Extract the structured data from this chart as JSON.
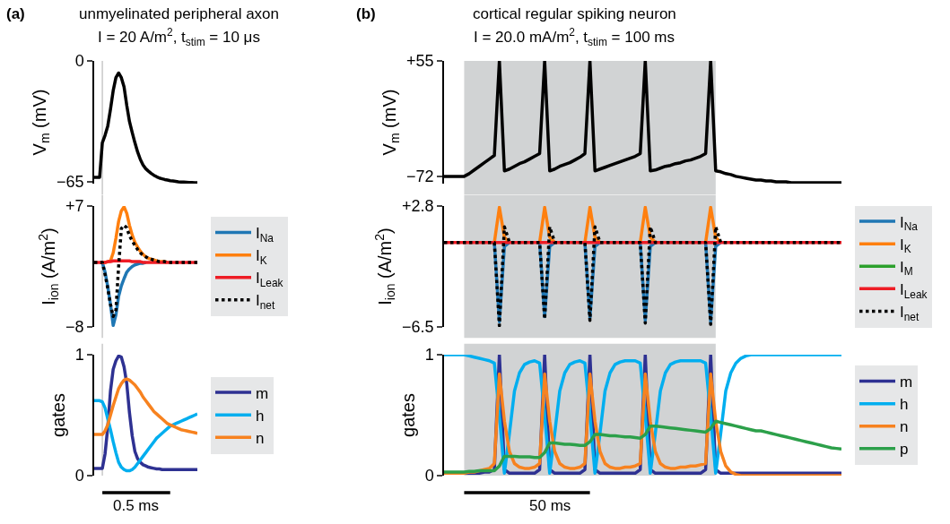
{
  "chart_data": [
    {
      "type": "line",
      "title": "unmyelinated peripheral axon",
      "subtitle": "I = 20 A/m$^{2}$, t$_{stim}$ = 10 μs",
      "annotations": [
        "(a)"
      ],
      "ylabel": "V$_{m}$ (mV)",
      "ylim": [
        -66,
        0
      ],
      "yticks": [
        0,
        {
          "value": -65,
          "label": "−65"
        }
      ],
      "tick_labels": "y",
      "categories": [
        null,
        null,
        null,
        null,
        null,
        null,
        null,
        null,
        null,
        null,
        null,
        null,
        null,
        null,
        null,
        null,
        null,
        null,
        null,
        null,
        null,
        null,
        null,
        null,
        null,
        null,
        null,
        null,
        null,
        null,
        null,
        null,
        null,
        null,
        null,
        null,
        null,
        null,
        null
      ],
      "series": [
        {
          "color": "#000000",
          "values": [
            -62.6,
            -62.6,
            -62.6,
            -44,
            -40,
            -35,
            -26,
            -16,
            -9,
            -6.5,
            -9,
            -14,
            -24,
            -32.6,
            -38.5,
            -44,
            -49,
            -53,
            -56,
            -58,
            -59.3,
            -60.5,
            -61.5,
            -62.3,
            -63,
            -63.4,
            -63.8,
            -64.1,
            -64.4,
            -64.6,
            -64.8,
            -65,
            -65.1,
            -65.2,
            -65.3,
            -65.4,
            -65.4,
            -65.5,
            -65.5
          ]
        }
      ]
    },
    {
      "type": "line",
      "ylabel": "I$_{ion}$ (A/m$^{2}$)",
      "ylim": [
        -8,
        7
      ],
      "yticks": [
        {
          "value": 7,
          "label": "+7"
        },
        {
          "value": -8,
          "label": "−8"
        }
      ],
      "tick_labels": "y",
      "legend": "right",
      "categories": [
        null,
        null,
        null,
        null,
        null,
        null,
        null,
        null,
        null,
        null,
        null,
        null,
        null,
        null,
        null,
        null,
        null,
        null,
        null,
        null,
        null,
        null,
        null,
        null,
        null,
        null,
        null,
        null,
        null,
        null,
        null,
        null,
        null,
        null,
        null,
        null,
        null,
        null,
        null
      ],
      "series": [
        {
          "name": "I$_{Na}$",
          "color": "#1f77b4",
          "values": [
            null,
            null,
            0,
            0,
            -1.2,
            -3,
            -5.2,
            -7.8,
            -6.5,
            -4.2,
            -2.9,
            -2,
            -1.2,
            -0.8,
            -0.5,
            -0.3,
            -0.2,
            -0.1,
            -0.1,
            0,
            null,
            null,
            null,
            null,
            null,
            null,
            null,
            null,
            null,
            null,
            null,
            null,
            null,
            null,
            null,
            null,
            null,
            null,
            null
          ]
        },
        {
          "name": "I$_{K}$",
          "color": "#ff7f0e",
          "values": [
            null,
            null,
            null,
            0,
            0,
            0.1,
            0.2,
            1.2,
            3,
            5.1,
            6.4,
            6.9,
            6.1,
            4.6,
            3.4,
            2.5,
            1.9,
            1.4,
            1.0,
            0.7,
            0.5,
            0.4,
            0.3,
            0.2,
            0.1,
            0.1,
            0.1,
            0,
            null,
            null,
            null,
            null,
            null,
            null,
            null,
            null,
            null,
            null,
            null
          ]
        },
        {
          "name": "I$_{Leak}$",
          "color": "#ee1c25",
          "values": [
            0,
            0,
            0,
            0,
            0,
            0.1,
            0.1,
            0.2,
            0.2,
            0.2,
            0.2,
            0.2,
            0.2,
            0.2,
            0.1,
            0.1,
            0.1,
            0.1,
            0,
            0,
            0,
            0,
            0,
            0,
            0,
            0,
            0,
            0,
            0,
            0,
            0,
            0,
            0,
            0,
            0,
            0,
            0,
            0,
            0
          ]
        },
        {
          "name": "I$_{net}$",
          "color": "#000000",
          "line_style": "dotted",
          "values": [
            0,
            0,
            0,
            0,
            -1.5,
            -3.2,
            -5.2,
            -6.7,
            -5.9,
            -0.5,
            4.2,
            4.6,
            4.3,
            3.3,
            2.7,
            2.1,
            1.6,
            1.2,
            0.9,
            0.7,
            0.5,
            0.4,
            0.3,
            0.2,
            0.1,
            0.1,
            0.1,
            0,
            0,
            0,
            0,
            0,
            0,
            0,
            0,
            0,
            0,
            0,
            0
          ]
        }
      ]
    },
    {
      "type": "line",
      "ylabel": "gates",
      "ylim": [
        0,
        1
      ],
      "yticks": [
        0,
        1
      ],
      "tick_labels": "y",
      "legend": "right",
      "annotations": [
        "0.5 ms"
      ],
      "categories": [
        null,
        null,
        null,
        null,
        null,
        null,
        null,
        null,
        null,
        null,
        null,
        null,
        null,
        null,
        null,
        null,
        null,
        null,
        null,
        null,
        null,
        null,
        null,
        null,
        null,
        null,
        null,
        null,
        null,
        null,
        null,
        null,
        null,
        null,
        null,
        null,
        null,
        null,
        null
      ],
      "series": [
        {
          "name": "m",
          "color": "#2e3192",
          "values": [
            0.06,
            0.06,
            0.06,
            0.06,
            0.18,
            0.4,
            0.7,
            0.88,
            0.95,
            0.99,
            0.98,
            0.9,
            0.76,
            0.52,
            0.33,
            0.2,
            0.14,
            0.11,
            0.09,
            0.08,
            0.07,
            0.065,
            0.06,
            0.055,
            0.055,
            0.05,
            0.05,
            0.05,
            0.05,
            0.05,
            0.05,
            0.05,
            0.05,
            0.05,
            0.05,
            0.05,
            0.05,
            0.05,
            0.05
          ]
        },
        {
          "name": "h",
          "color": "#00aeef",
          "values": [
            0.62,
            0.62,
            0.62,
            0.61,
            0.56,
            0.47,
            0.38,
            0.28,
            0.19,
            0.11,
            0.07,
            0.05,
            0.04,
            0.04,
            0.05,
            0.07,
            0.1,
            0.13,
            0.16,
            0.19,
            0.22,
            0.25,
            0.28,
            0.31,
            0.33,
            0.35,
            0.37,
            0.39,
            0.41,
            0.42,
            0.43,
            0.44,
            0.45,
            0.46,
            0.47,
            0.48,
            0.49,
            0.5,
            0.51
          ]
        },
        {
          "name": "n",
          "color": "#f7821f",
          "values": [
            0.34,
            0.34,
            0.34,
            0.34,
            0.37,
            0.42,
            0.5,
            0.58,
            0.65,
            0.72,
            0.76,
            0.79,
            0.8,
            0.79,
            0.77,
            0.75,
            0.72,
            0.69,
            0.65,
            0.62,
            0.59,
            0.56,
            0.53,
            0.51,
            0.49,
            0.47,
            0.45,
            0.43,
            0.42,
            0.41,
            0.4,
            0.39,
            0.38,
            0.375,
            0.37,
            0.365,
            0.36,
            0.355,
            0.35
          ]
        }
      ]
    },
    {
      "type": "line",
      "title": "cortical regular spiking neuron",
      "subtitle": "I = 20.0 mA/m$^{2}$, t$_{stim}$ = 100 ms",
      "annotations": [
        "(b)"
      ],
      "ylabel": "V$_{m}$ (mV)",
      "ylim": [
        -80,
        55
      ],
      "yticks": [
        {
          "value": 55,
          "label": "+55"
        },
        {
          "value": -72,
          "label": "−72"
        }
      ],
      "tick_labels": "y",
      "categories": [
        null,
        null,
        null,
        null,
        null,
        null,
        null,
        null,
        null,
        null,
        null,
        null,
        null,
        null,
        null,
        null,
        null,
        null,
        null,
        null,
        null,
        null,
        null,
        null,
        null,
        null,
        null,
        null,
        null,
        null,
        null,
        null,
        null,
        null,
        null,
        null,
        null,
        null,
        null,
        null,
        null,
        null,
        null,
        null,
        null,
        null,
        null,
        null,
        null,
        null,
        null,
        null,
        null,
        null,
        null,
        null,
        null,
        null,
        null,
        null,
        null,
        null,
        null,
        null,
        null,
        null,
        null,
        null,
        null,
        null,
        null,
        null,
        null,
        null,
        null,
        null,
        null,
        null,
        null,
        null
      ],
      "series": [
        {
          "color": "#000000",
          "values": [
            -72,
            -72,
            -72,
            -72,
            -72,
            -69,
            -65,
            -61,
            -57,
            -53,
            -49,
            55,
            -66,
            -64,
            -61,
            -58,
            -56,
            -53,
            -50,
            -47,
            55,
            -66,
            -64,
            -61,
            -59,
            -57,
            -54,
            -51,
            -47,
            55,
            -66,
            -64,
            -62,
            -60,
            -58,
            -56,
            -54,
            -52,
            -50,
            -47,
            55,
            -66,
            -65,
            -63,
            -61,
            -60,
            -58,
            -57,
            -55,
            -54,
            -52,
            -50,
            -47,
            55,
            -66,
            -67,
            -69,
            -70,
            -72,
            -73,
            -74,
            -75,
            -76,
            -76,
            -77,
            -77,
            -78,
            -78,
            -78,
            -79,
            -79,
            -79,
            -79,
            -79,
            -79,
            -79,
            -79,
            -79,
            -79,
            -79
          ]
        }
      ]
    },
    {
      "type": "line",
      "ylabel": "I$_{ion}$ (A/m$^{2}$)",
      "ylim": [
        -6.5,
        2.8
      ],
      "yticks": [
        {
          "value": 2.8,
          "label": "+2.8"
        },
        {
          "value": -6.5,
          "label": "−6.5"
        }
      ],
      "tick_labels": "y",
      "legend": "right",
      "categories": [
        null,
        null,
        null,
        null,
        null,
        null,
        null,
        null,
        null,
        null,
        null,
        null,
        null,
        null,
        null,
        null,
        null,
        null,
        null,
        null,
        null,
        null,
        null,
        null,
        null,
        null,
        null,
        null,
        null,
        null,
        null,
        null,
        null,
        null,
        null,
        null,
        null,
        null,
        null,
        null,
        null,
        null,
        null,
        null,
        null,
        null,
        null,
        null,
        null,
        null,
        null,
        null,
        null,
        null,
        null,
        null,
        null,
        null,
        null,
        null,
        null,
        null,
        null,
        null,
        null,
        null,
        null,
        null,
        null,
        null,
        null,
        null,
        null,
        null,
        null,
        null,
        null,
        null,
        null,
        null
      ],
      "series": [
        {
          "name": "I$_{Na}$",
          "color": "#1f77b4",
          "values": [
            null,
            null,
            null,
            null,
            null,
            null,
            null,
            null,
            null,
            null,
            0,
            -6.1,
            -0.3,
            0,
            null,
            null,
            null,
            null,
            null,
            0,
            -5.7,
            -0.3,
            0,
            null,
            null,
            null,
            null,
            null,
            0,
            -5.8,
            -0.3,
            0,
            null,
            null,
            null,
            null,
            null,
            null,
            null,
            0,
            -6.0,
            -0.3,
            0,
            null,
            null,
            null,
            null,
            null,
            null,
            null,
            null,
            null,
            0,
            -6.1,
            -0.3,
            0,
            null,
            null,
            null,
            null,
            null,
            null,
            null,
            null,
            null,
            null,
            null,
            null,
            null,
            null,
            null,
            null,
            null,
            null,
            null,
            null,
            null,
            null,
            null,
            null
          ]
        },
        {
          "name": "I$_{K}$",
          "color": "#ff7f0e",
          "values": [
            null,
            null,
            null,
            null,
            null,
            null,
            null,
            null,
            null,
            null,
            0,
            2.7,
            0.4,
            0,
            null,
            null,
            null,
            null,
            null,
            0,
            2.7,
            0.4,
            0,
            null,
            null,
            null,
            null,
            null,
            0,
            2.7,
            0.4,
            0,
            null,
            null,
            null,
            null,
            null,
            null,
            null,
            0,
            2.7,
            0.4,
            0,
            null,
            null,
            null,
            null,
            null,
            null,
            null,
            null,
            null,
            0,
            2.7,
            0.4,
            0,
            null,
            null,
            null,
            null,
            null,
            null,
            null,
            null,
            null,
            null,
            null,
            null,
            null,
            null,
            null,
            null,
            null,
            null,
            null,
            null,
            null,
            null,
            null,
            null
          ]
        },
        {
          "name": "I$_{M}$",
          "color": "#2ca02c",
          "values": [
            null,
            null,
            null,
            null,
            null,
            null,
            null,
            null,
            null,
            null,
            null,
            null,
            null,
            null,
            null,
            null,
            null,
            null,
            null,
            null,
            null,
            null,
            null,
            null,
            null,
            null,
            null,
            null,
            null,
            null,
            null,
            null,
            null,
            null,
            null,
            null,
            null,
            null,
            null,
            null,
            null,
            null,
            null,
            null,
            null,
            null,
            null,
            null,
            null,
            null,
            null,
            null,
            null,
            null,
            null,
            null,
            null,
            null,
            null,
            null,
            null,
            null,
            null,
            null,
            null,
            null,
            null,
            null,
            null,
            null,
            null,
            null,
            null,
            null,
            null,
            null,
            null,
            null,
            null,
            null
          ]
        },
        {
          "name": "I$_{Leak}$",
          "color": "#ee1c25",
          "values": [
            0,
            0,
            0,
            0,
            0,
            0,
            0,
            0,
            0,
            0,
            0,
            0,
            0,
            0,
            0,
            0,
            0,
            0,
            0,
            0,
            0,
            0,
            0,
            0,
            0,
            0,
            0,
            0,
            0,
            0,
            0,
            0,
            0,
            0,
            0,
            0,
            0,
            0,
            0,
            0,
            0,
            0,
            0,
            0,
            0,
            0,
            0,
            0,
            0,
            0,
            0,
            0,
            0,
            0,
            0,
            0,
            0,
            0,
            0,
            0,
            0,
            0,
            0,
            0,
            0,
            0,
            0,
            0,
            0,
            0,
            0,
            0,
            0,
            0,
            0,
            0,
            0,
            0,
            0,
            0
          ]
        },
        {
          "name": "I$_{net}$",
          "color": "#000000",
          "line_style": "dotted",
          "values": [
            0,
            0,
            0,
            0,
            0,
            0,
            0,
            0,
            0,
            0,
            0,
            -6.4,
            1.2,
            0,
            0,
            0,
            0,
            0,
            0,
            0,
            -5.9,
            1.2,
            0,
            0,
            0,
            0,
            0,
            0,
            0,
            -6.0,
            1.2,
            0,
            0,
            0,
            0,
            0,
            0,
            0,
            0,
            0,
            -6.2,
            1.2,
            0,
            0,
            0,
            0,
            0,
            0,
            0,
            0,
            0,
            0,
            0,
            -6.3,
            1.2,
            0,
            0,
            0,
            0,
            0,
            0,
            0,
            0,
            0,
            0,
            0,
            0,
            0,
            0,
            0,
            0,
            0,
            0,
            0,
            0,
            0,
            0,
            0,
            0,
            0
          ]
        }
      ]
    },
    {
      "type": "line",
      "ylabel": "gates",
      "ylim": [
        0,
        1
      ],
      "yticks": [
        0,
        1
      ],
      "tick_labels": "y",
      "legend": "right",
      "annotations": [
        "50 ms"
      ],
      "categories": [
        null,
        null,
        null,
        null,
        null,
        null,
        null,
        null,
        null,
        null,
        null,
        null,
        null,
        null,
        null,
        null,
        null,
        null,
        null,
        null,
        null,
        null,
        null,
        null,
        null,
        null,
        null,
        null,
        null,
        null,
        null,
        null,
        null,
        null,
        null,
        null,
        null,
        null,
        null,
        null,
        null,
        null,
        null,
        null,
        null,
        null,
        null,
        null,
        null,
        null,
        null,
        null,
        null,
        null,
        null,
        null,
        null,
        null,
        null,
        null,
        null,
        null,
        null,
        null,
        null,
        null,
        null,
        null,
        null,
        null,
        null,
        null,
        null,
        null,
        null,
        null,
        null,
        null,
        null,
        null
      ],
      "series": [
        {
          "name": "m",
          "color": "#2e3192",
          "values": [
            null,
            null,
            null,
            null,
            0.02,
            0.02,
            0.02,
            0.02,
            0.03,
            0.03,
            0.05,
            1.0,
            0.05,
            0.02,
            0.02,
            0.02,
            0.02,
            0.02,
            0.02,
            0.05,
            1.0,
            0.05,
            0.02,
            0.02,
            0.02,
            0.02,
            0.02,
            0.02,
            0.05,
            1.0,
            0.05,
            0.02,
            0.02,
            0.02,
            0.02,
            0.02,
            0.02,
            0.02,
            0.02,
            0.05,
            1.0,
            0.05,
            0.02,
            0.02,
            0.02,
            0.02,
            0.02,
            0.02,
            0.02,
            0.02,
            0.02,
            0.02,
            0.05,
            1.0,
            0.05,
            0.02,
            0.02,
            0.02,
            0.02,
            0.02,
            0.02,
            0.02,
            0.02,
            0.02,
            0.02,
            0.02,
            0.02,
            0.02,
            0.02,
            0.02,
            0.02,
            0.02,
            0.02,
            0.02,
            0.02,
            0.02,
            0.02,
            0.02,
            0.02,
            0.02
          ]
        },
        {
          "name": "h",
          "color": "#00aeef",
          "values": [
            1,
            1,
            1,
            1,
            1,
            0.99,
            0.98,
            0.97,
            0.96,
            0.95,
            0.93,
            0.5,
            0.02,
            0.35,
            0.7,
            0.85,
            0.92,
            0.94,
            0.95,
            0.93,
            0.5,
            0.02,
            0.35,
            0.7,
            0.85,
            0.92,
            0.94,
            0.95,
            0.93,
            0.5,
            0.02,
            0.35,
            0.7,
            0.85,
            0.92,
            0.94,
            0.95,
            0.95,
            0.95,
            0.93,
            0.5,
            0.02,
            0.35,
            0.7,
            0.85,
            0.92,
            0.94,
            0.95,
            0.95,
            0.95,
            0.95,
            0.95,
            0.93,
            0.5,
            0.02,
            0.35,
            0.7,
            0.85,
            0.93,
            0.97,
            0.99,
            1,
            1,
            1,
            1,
            1,
            1,
            1,
            1,
            1,
            1,
            1,
            1,
            1,
            1,
            1,
            1,
            1,
            1,
            1
          ]
        },
        {
          "name": "n",
          "color": "#f7821f",
          "values": [
            0.02,
            0.02,
            0.02,
            0.02,
            0.02,
            0.03,
            0.03,
            0.04,
            0.05,
            0.06,
            0.1,
            0.84,
            0.45,
            0.2,
            0.1,
            0.07,
            0.06,
            0.06,
            0.07,
            0.1,
            0.84,
            0.45,
            0.2,
            0.1,
            0.07,
            0.06,
            0.06,
            0.07,
            0.1,
            0.84,
            0.45,
            0.2,
            0.1,
            0.07,
            0.06,
            0.06,
            0.07,
            0.07,
            0.08,
            0.1,
            0.84,
            0.45,
            0.2,
            0.1,
            0.07,
            0.06,
            0.06,
            0.07,
            0.07,
            0.08,
            0.08,
            0.09,
            0.1,
            0.84,
            0.45,
            0.2,
            0.08,
            0.03,
            0.01,
            0,
            0,
            0,
            0,
            0,
            0,
            0,
            0,
            0,
            0,
            0,
            0,
            0,
            0,
            0,
            0,
            0,
            0,
            0,
            0,
            0
          ]
        },
        {
          "name": "p",
          "color": "#2ca04a",
          "values": [
            0.03,
            0.03,
            0.03,
            0.03,
            0.03,
            0.035,
            0.035,
            0.04,
            0.04,
            0.04,
            0.04,
            0.08,
            0.16,
            0.16,
            0.16,
            0.155,
            0.155,
            0.155,
            0.15,
            0.15,
            0.19,
            0.27,
            0.27,
            0.265,
            0.26,
            0.26,
            0.255,
            0.25,
            0.25,
            0.28,
            0.34,
            0.34,
            0.335,
            0.33,
            0.33,
            0.325,
            0.32,
            0.32,
            0.315,
            0.31,
            0.34,
            0.41,
            0.41,
            0.405,
            0.4,
            0.395,
            0.39,
            0.385,
            0.38,
            0.375,
            0.37,
            0.365,
            0.36,
            0.39,
            0.45,
            0.44,
            0.43,
            0.42,
            0.41,
            0.4,
            0.39,
            0.38,
            0.37,
            0.37,
            0.36,
            0.35,
            0.34,
            0.33,
            0.32,
            0.31,
            0.3,
            0.29,
            0.28,
            0.27,
            0.26,
            0.25,
            0.24,
            0.23,
            0.225,
            0.22
          ]
        }
      ]
    }
  ]
}
